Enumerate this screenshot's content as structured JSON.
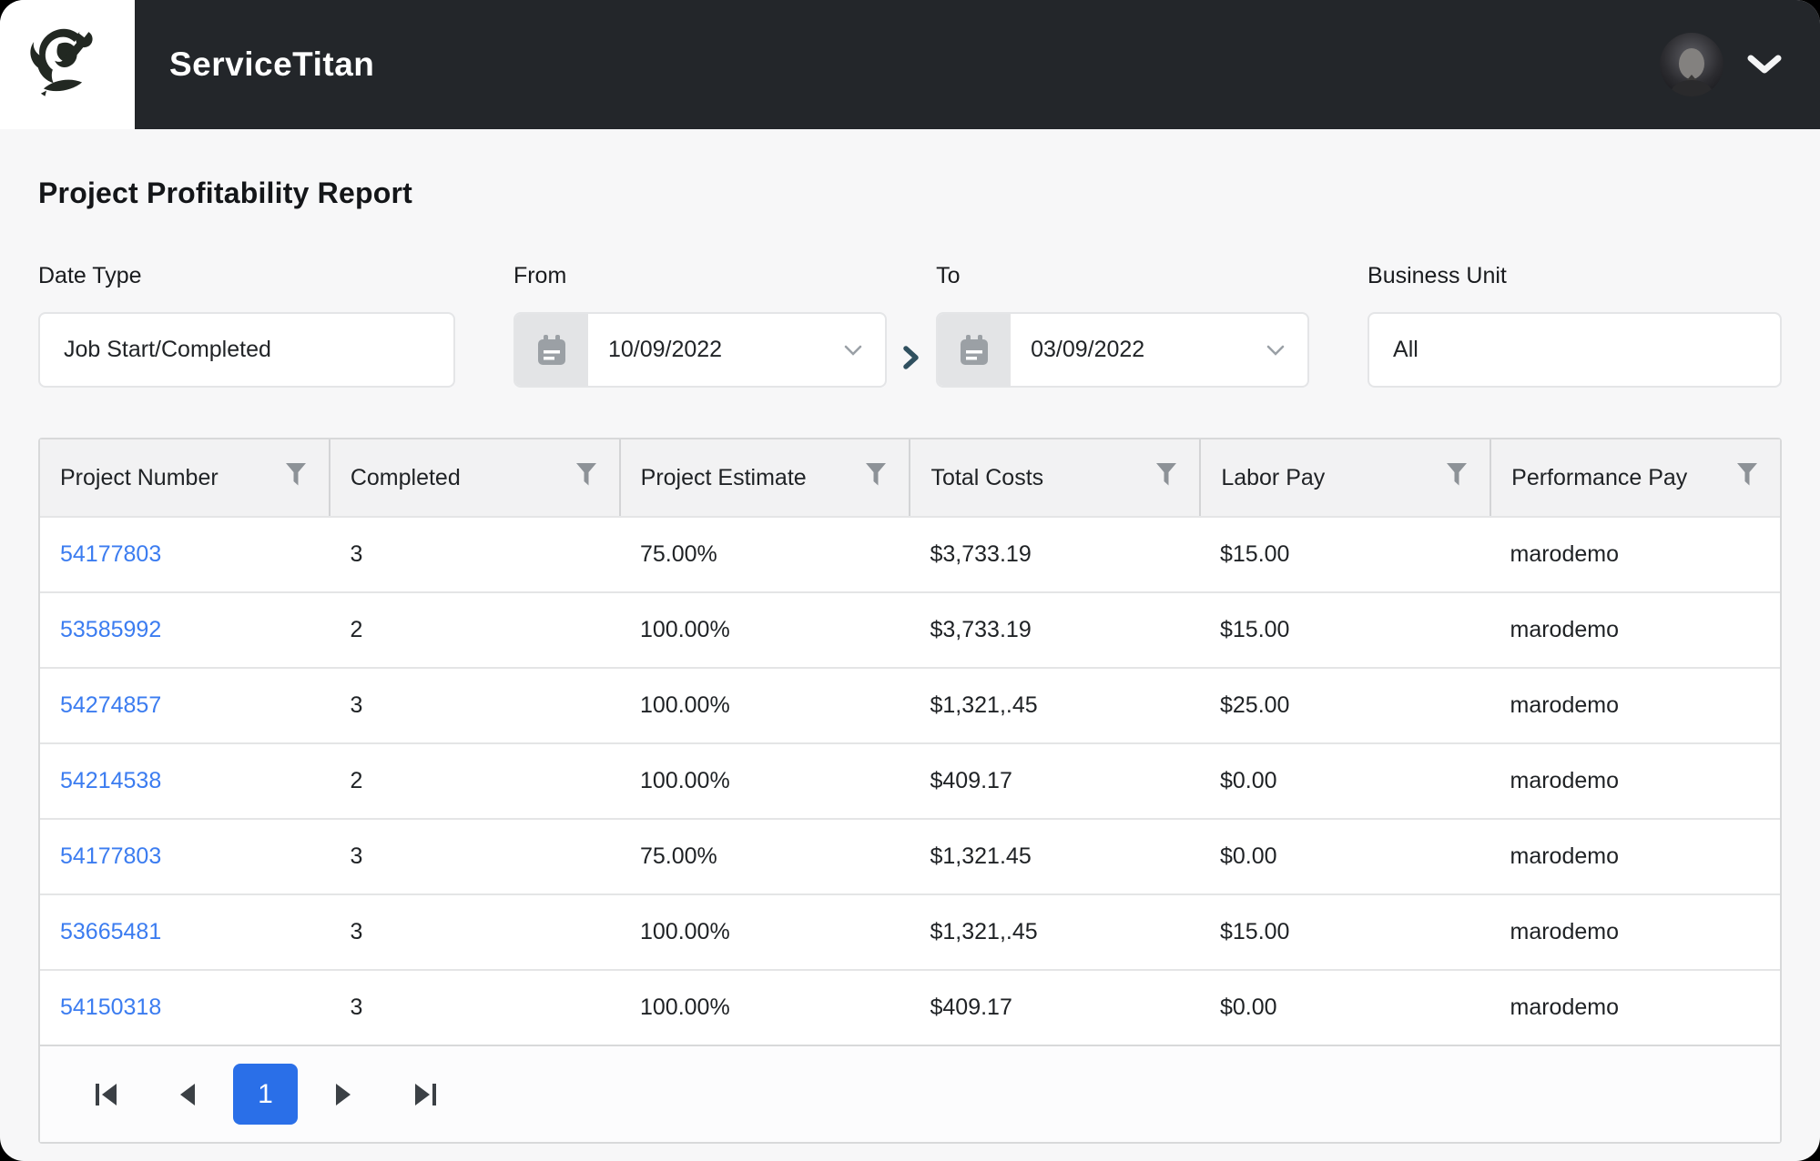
{
  "topbar": {
    "brand": "ServiceTitan"
  },
  "page": {
    "title": "Project Profitability Report"
  },
  "filters": {
    "date_type": {
      "label": "Date Type",
      "value": "Job Start/Completed"
    },
    "from": {
      "label": "From",
      "value": "10/09/2022"
    },
    "to": {
      "label": "To",
      "value": "03/09/2022"
    },
    "business_unit": {
      "label": "Business Unit",
      "value": "All"
    }
  },
  "table": {
    "columns": [
      "Project Number",
      "Completed",
      "Project Estimate",
      "Total Costs",
      "Labor Pay",
      "Performance Pay"
    ],
    "rows": [
      [
        "54177803",
        "3",
        "75.00%",
        "$3,733.19",
        "$15.00",
        "marodemo"
      ],
      [
        "53585992",
        "2",
        "100.00%",
        "$3,733.19",
        "$15.00",
        "marodemo"
      ],
      [
        "54274857",
        "3",
        "100.00%",
        "$1,321,.45",
        "$25.00",
        "marodemo"
      ],
      [
        "54214538",
        "2",
        "100.00%",
        "$409.17",
        "$0.00",
        "marodemo"
      ],
      [
        "54177803",
        "3",
        "75.00%",
        "$1,321.45",
        "$0.00",
        "marodemo"
      ],
      [
        "53665481",
        "3",
        "100.00%",
        "$1,321,.45",
        "$15.00",
        "marodemo"
      ],
      [
        "54150318",
        "3",
        "100.00%",
        "$409.17",
        "$0.00",
        "marodemo"
      ]
    ]
  },
  "pagination": {
    "current_page": "1"
  },
  "colors": {
    "topbar_bg": "#23262a",
    "accent_blue": "#2a6fe8",
    "link_blue": "#3b7cf0",
    "page_bg": "#f7f7f8",
    "table_header_bg": "#f2f2f3"
  }
}
